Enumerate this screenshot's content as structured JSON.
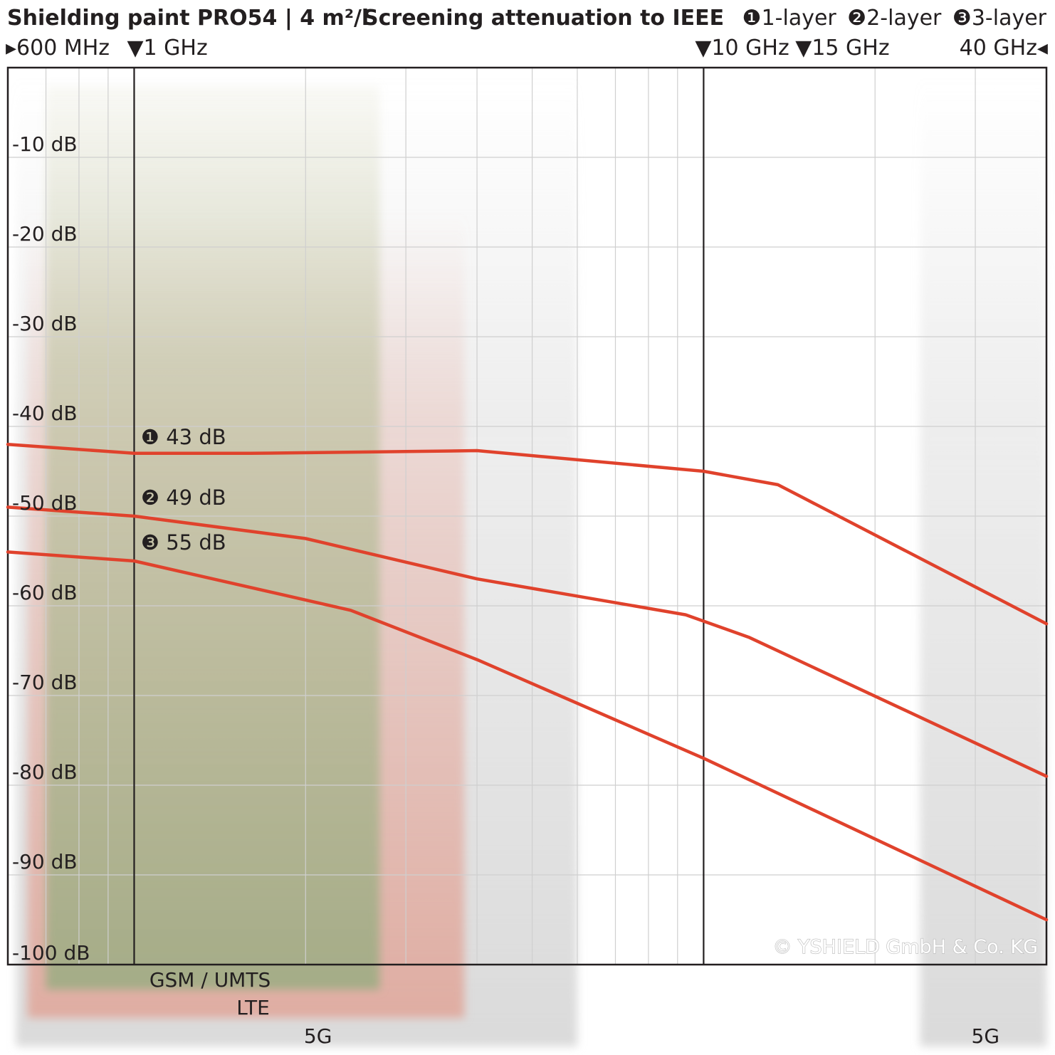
{
  "header": {
    "title": "Shielding paint PRO54 | 4 m²/l",
    "legend_title": "Screening attenuation to IEEE",
    "legend_entries": [
      "❶1-layer",
      "❷2-layer",
      "❸3-layer"
    ]
  },
  "frequency_markers": [
    {
      "label": "▸600 MHz",
      "freq_ghz": 0.6
    },
    {
      "label": "▼1 GHz",
      "freq_ghz": 1
    },
    {
      "label": "▼10 GHz",
      "freq_ghz": 10
    },
    {
      "label": "▼15 GHz",
      "freq_ghz": 15
    },
    {
      "label": "40 GHz◂",
      "freq_ghz": 40
    }
  ],
  "bands": [
    {
      "label": "GSM / UMTS",
      "from_ghz": 0.7,
      "to_ghz": 2.7,
      "color": "#8aa070"
    },
    {
      "label": "LTE",
      "from_ghz": 0.65,
      "to_ghz": 3.8,
      "color": "#e8b3a8"
    },
    {
      "label": "5G",
      "from_ghz": 0.62,
      "to_ghz": 6.0,
      "color": "#d9d9d9"
    },
    {
      "label": "5G",
      "from_ghz": 24.0,
      "to_ghz": 40.0,
      "color": "#d9d9d9"
    }
  ],
  "copyright": "© YSHIELD GmbH & Co. KG",
  "chart_data": {
    "type": "line",
    "x_scale": "log",
    "x_unit": "GHz",
    "xlim": [
      0.6,
      40
    ],
    "ylim": [
      -100,
      0
    ],
    "y_ticks": [
      {
        "value": -10,
        "label": "-10 dB"
      },
      {
        "value": -20,
        "label": "-20 dB"
      },
      {
        "value": -30,
        "label": "-30 dB"
      },
      {
        "value": -40,
        "label": "-40 dB"
      },
      {
        "value": -50,
        "label": "-50 dB"
      },
      {
        "value": -60,
        "label": "-60 dB"
      },
      {
        "value": -70,
        "label": "-70 dB"
      },
      {
        "value": -80,
        "label": "-80 dB"
      },
      {
        "value": -90,
        "label": "-90 dB"
      },
      {
        "value": -100,
        "label": "-100 dB"
      }
    ],
    "grid": true,
    "line_color": "#e0422c",
    "series": [
      {
        "name": "❶1-layer",
        "annotation": "❶ 43 dB",
        "points": [
          [
            0.6,
            -42
          ],
          [
            1.0,
            -43
          ],
          [
            1.6,
            -43
          ],
          [
            3.0,
            -42.8
          ],
          [
            4.0,
            -42.7
          ],
          [
            10.0,
            -45
          ],
          [
            13.5,
            -46.5
          ],
          [
            15.0,
            -48
          ],
          [
            40.0,
            -62
          ]
        ]
      },
      {
        "name": "❷2-layer",
        "annotation": "❷ 49 dB",
        "points": [
          [
            0.6,
            -49
          ],
          [
            1.0,
            -50
          ],
          [
            2.0,
            -52.5
          ],
          [
            4.0,
            -57
          ],
          [
            9.3,
            -61
          ],
          [
            12.0,
            -63.5
          ],
          [
            40.0,
            -79
          ]
        ]
      },
      {
        "name": "❸3-layer",
        "annotation": "❸ 55 dB",
        "points": [
          [
            0.6,
            -54
          ],
          [
            1.0,
            -55
          ],
          [
            2.4,
            -60.5
          ],
          [
            4.0,
            -66
          ],
          [
            10.0,
            -77
          ],
          [
            40.0,
            -95
          ]
        ]
      }
    ]
  }
}
